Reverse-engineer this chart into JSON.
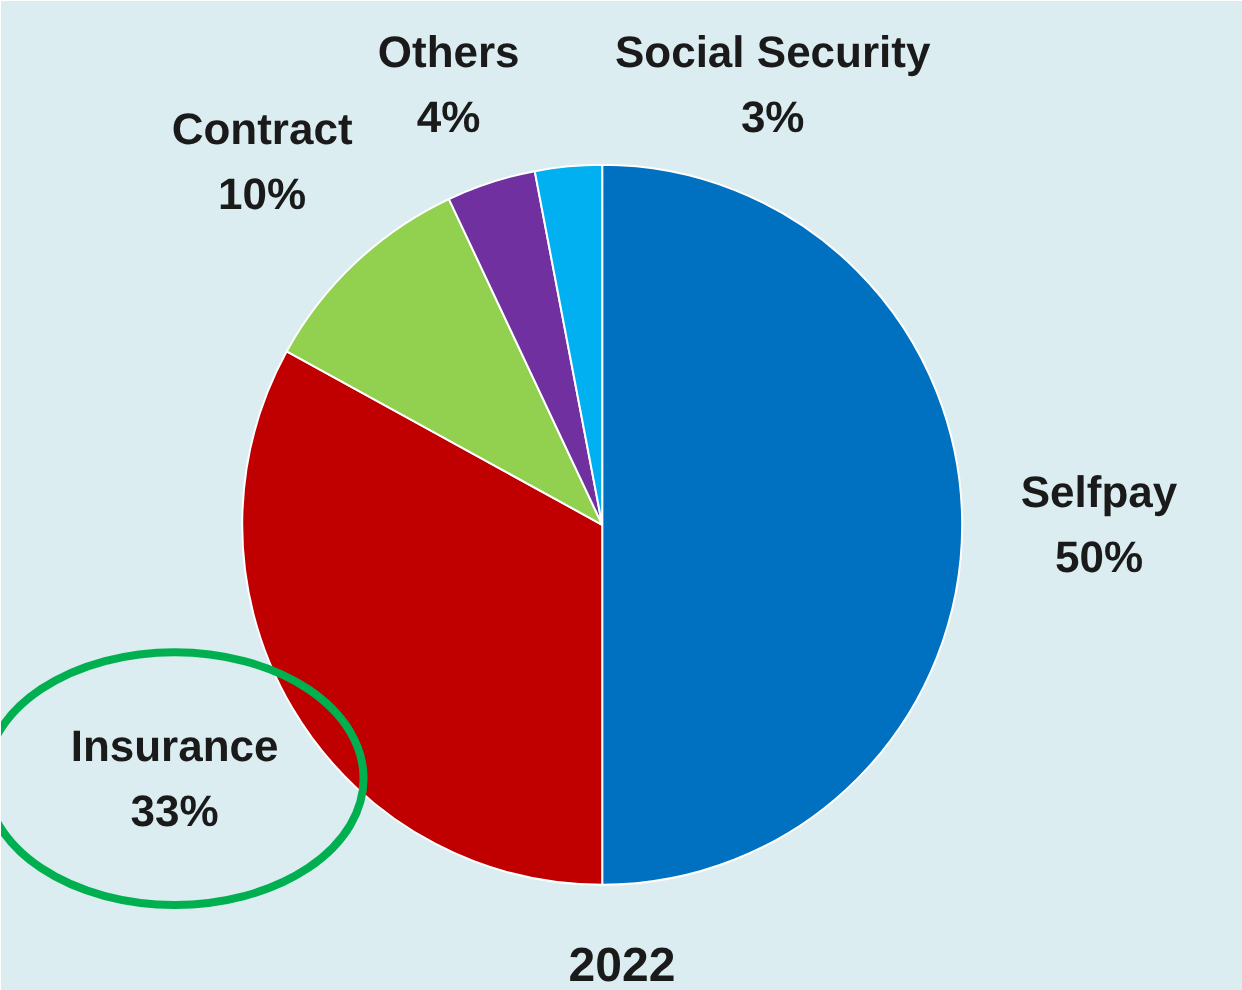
{
  "chart_data": {
    "type": "pie",
    "title": "2022",
    "categories": [
      "Selfpay",
      "Insurance",
      "Contract",
      "Others",
      "Social Security"
    ],
    "values": [
      50,
      33,
      10,
      4,
      3
    ],
    "colors": [
      "#0070c0",
      "#c00000",
      "#92d050",
      "#7030a0",
      "#00b0f0"
    ],
    "value_labels": [
      "50%",
      "33%",
      "10%",
      "4%",
      "3%"
    ]
  }
}
